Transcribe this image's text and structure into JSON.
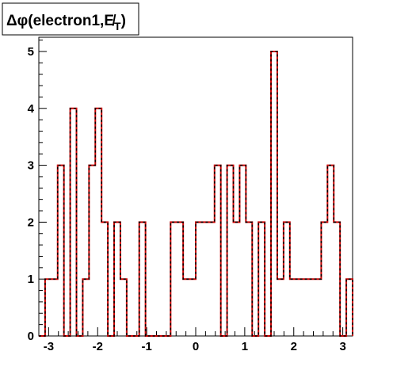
{
  "chart_data": {
    "type": "histogram",
    "title": "Δφ(electron1,E̸T)",
    "title_parts": {
      "symbol": "Δφ",
      "text": "(electron1,",
      "met": "E̸",
      "subscript": "T",
      "close": ")"
    },
    "xlabel": "",
    "ylabel": "",
    "xlim": [
      -3.2,
      3.2
    ],
    "ylim": [
      0,
      5.25
    ],
    "x_ticks": [
      -3,
      -2,
      -1,
      0,
      1,
      2,
      3
    ],
    "x_tick_labels": [
      "-3",
      "-2",
      "-1",
      "0",
      "1",
      "2",
      "3"
    ],
    "y_ticks": [
      0,
      1,
      2,
      3,
      4,
      5
    ],
    "y_tick_labels": [
      "0",
      "1",
      "2",
      "3",
      "4",
      "5"
    ],
    "bin_edges_start": -3.2,
    "bin_width": 0.128,
    "bin_values": [
      0,
      1,
      1,
      3,
      0,
      4,
      0,
      1,
      3,
      4,
      2,
      0,
      2,
      1,
      0,
      0,
      2,
      0,
      0,
      0,
      0,
      2,
      2,
      1,
      1,
      2,
      2,
      2,
      3,
      0,
      3,
      2,
      3,
      2,
      0,
      2,
      0,
      5,
      1,
      2,
      1,
      1,
      1,
      1,
      1,
      2,
      3,
      2,
      0,
      1
    ],
    "grid": false,
    "legend": "none",
    "series": [
      {
        "style": "solid",
        "color": "#cc0000"
      },
      {
        "style": "dashed",
        "color": "#000000"
      }
    ]
  }
}
